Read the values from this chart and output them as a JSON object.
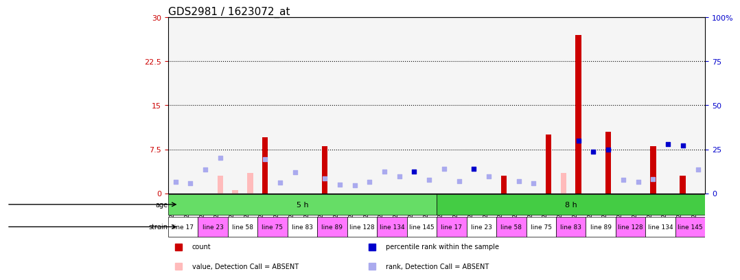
{
  "title": "GDS2981 / 1623072_at",
  "samples": [
    "GSM225283",
    "GSM225286",
    "GSM225288",
    "GSM225289",
    "GSM225291",
    "GSM225293",
    "GSM225296",
    "GSM225298",
    "GSM225299",
    "GSM225302",
    "GSM225304",
    "GSM225306",
    "GSM225307",
    "GSM225309",
    "GSM225317",
    "GSM225318",
    "GSM225319",
    "GSM225320",
    "GSM225322",
    "GSM225323",
    "GSM225324",
    "GSM225325",
    "GSM225326",
    "GSM225327",
    "GSM225328",
    "GSM225329",
    "GSM225330",
    "GSM225331",
    "GSM225332",
    "GSM225333",
    "GSM225334",
    "GSM225335",
    "GSM225336",
    "GSM225337",
    "GSM225338",
    "GSM225339"
  ],
  "count_present": [
    null,
    null,
    null,
    null,
    null,
    null,
    9.5,
    null,
    null,
    null,
    8.0,
    null,
    null,
    null,
    null,
    null,
    null,
    null,
    null,
    null,
    null,
    null,
    3.0,
    null,
    null,
    10.0,
    null,
    27.0,
    null,
    10.5,
    null,
    null,
    8.0,
    null,
    3.0,
    null
  ],
  "count_absent": [
    null,
    null,
    null,
    3.0,
    0.5,
    3.5,
    null,
    null,
    null,
    null,
    null,
    null,
    null,
    null,
    null,
    null,
    null,
    null,
    null,
    null,
    null,
    null,
    null,
    null,
    null,
    null,
    3.5,
    null,
    null,
    null,
    null,
    null,
    null,
    null,
    null,
    null
  ],
  "rank_present": [
    null,
    null,
    null,
    null,
    null,
    null,
    null,
    null,
    null,
    null,
    null,
    null,
    null,
    null,
    null,
    null,
    12.5,
    null,
    null,
    null,
    14.0,
    null,
    null,
    null,
    null,
    null,
    null,
    30.0,
    23.5,
    25.0,
    null,
    null,
    null,
    28.0,
    27.0,
    null
  ],
  "rank_absent": [
    6.5,
    5.5,
    13.5,
    20.0,
    null,
    null,
    19.5,
    6.0,
    12.0,
    null,
    8.5,
    5.0,
    4.5,
    6.5,
    12.5,
    9.5,
    null,
    7.5,
    14.0,
    7.0,
    null,
    9.5,
    null,
    7.0,
    5.5,
    null,
    null,
    null,
    null,
    null,
    7.5,
    6.5,
    8.0,
    null,
    null,
    13.5
  ],
  "age_groups": [
    {
      "label": "5 h",
      "start": 0,
      "end": 18,
      "color": "#66dd66"
    },
    {
      "label": "8 h",
      "start": 18,
      "end": 36,
      "color": "#44cc44"
    }
  ],
  "strain_groups": [
    {
      "label": "line 17",
      "start": 0,
      "end": 2,
      "color": "#ffffff"
    },
    {
      "label": "line 23",
      "start": 2,
      "end": 4,
      "color": "#ff77ff"
    },
    {
      "label": "line 58",
      "start": 4,
      "end": 6,
      "color": "#ffffff"
    },
    {
      "label": "line 75",
      "start": 6,
      "end": 8,
      "color": "#ff77ff"
    },
    {
      "label": "line 83",
      "start": 8,
      "end": 10,
      "color": "#ffffff"
    },
    {
      "label": "line 89",
      "start": 10,
      "end": 12,
      "color": "#ff77ff"
    },
    {
      "label": "line 128",
      "start": 12,
      "end": 14,
      "color": "#ffffff"
    },
    {
      "label": "line 134",
      "start": 14,
      "end": 16,
      "color": "#ff77ff"
    },
    {
      "label": "line 145",
      "start": 16,
      "end": 18,
      "color": "#ffffff"
    },
    {
      "label": "line 17",
      "start": 18,
      "end": 20,
      "color": "#ff77ff"
    },
    {
      "label": "line 23",
      "start": 20,
      "end": 22,
      "color": "#ffffff"
    },
    {
      "label": "line 58",
      "start": 22,
      "end": 24,
      "color": "#ff77ff"
    },
    {
      "label": "line 75",
      "start": 24,
      "end": 26,
      "color": "#ffffff"
    },
    {
      "label": "line 83",
      "start": 26,
      "end": 28,
      "color": "#ff77ff"
    },
    {
      "label": "line 89",
      "start": 28,
      "end": 30,
      "color": "#ffffff"
    },
    {
      "label": "line 128",
      "start": 30,
      "end": 32,
      "color": "#ff77ff"
    },
    {
      "label": "line 134",
      "start": 32,
      "end": 34,
      "color": "#ffffff"
    },
    {
      "label": "line 145",
      "start": 34,
      "end": 36,
      "color": "#ff77ff"
    }
  ],
  "ylim_left": [
    0,
    30
  ],
  "ylim_right": [
    0,
    100
  ],
  "yticks_left": [
    0,
    7.5,
    15,
    22.5,
    30
  ],
  "ytick_labels_left": [
    "0",
    "7.5",
    "15",
    "22.5",
    "30"
  ],
  "yticks_right": [
    0,
    25,
    50,
    75,
    100
  ],
  "ytick_labels_right": [
    "0",
    "25",
    "50",
    "75",
    "100%"
  ],
  "bar_color_present": "#cc0000",
  "bar_color_absent": "#ffbbbb",
  "scatter_color_present": "#0000cc",
  "scatter_color_absent": "#aaaaee",
  "bg_color": "#f5f5f5",
  "title_fontsize": 11,
  "axis_label_color_left": "#cc0000",
  "axis_label_color_right": "#0000cc",
  "legend_items": [
    {
      "color": "#cc0000",
      "marker": "s",
      "label": "count"
    },
    {
      "color": "#0000cc",
      "marker": "s",
      "label": "percentile rank within the sample"
    },
    {
      "color": "#ffbbbb",
      "marker": "s",
      "label": "value, Detection Call = ABSENT"
    },
    {
      "color": "#aaaaee",
      "marker": "s",
      "label": "rank, Detection Call = ABSENT"
    }
  ]
}
